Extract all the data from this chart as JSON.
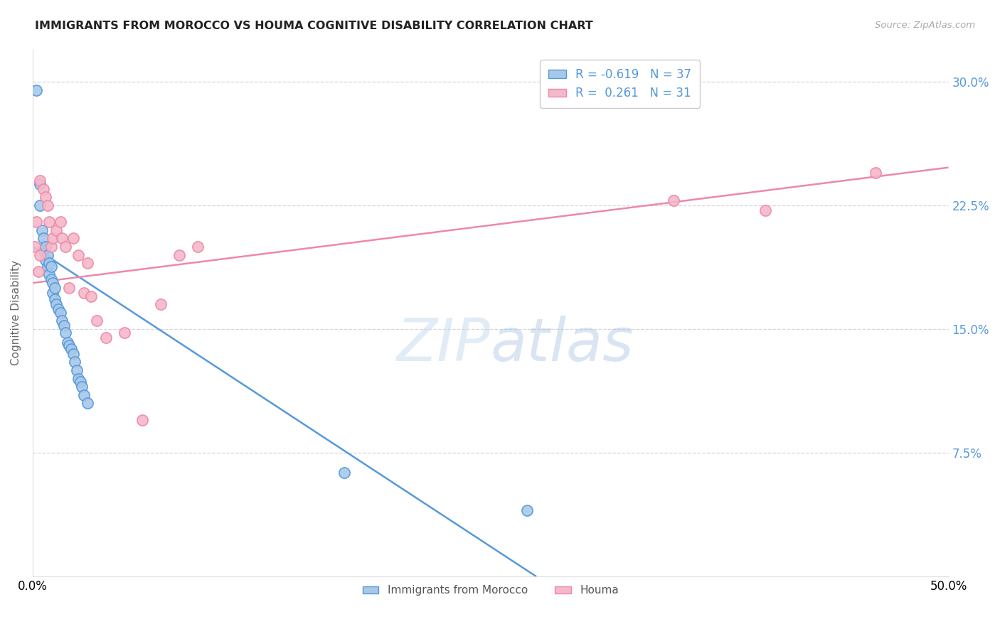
{
  "title": "IMMIGRANTS FROM MOROCCO VS HOUMA COGNITIVE DISABILITY CORRELATION CHART",
  "source": "Source: ZipAtlas.com",
  "ylabel": "Cognitive Disability",
  "ytick_labels": [
    "7.5%",
    "15.0%",
    "22.5%",
    "30.0%"
  ],
  "ytick_values": [
    0.075,
    0.15,
    0.225,
    0.3
  ],
  "xlim": [
    0.0,
    0.5
  ],
  "ylim": [
    0.0,
    0.32
  ],
  "legend_label1": "Immigrants from Morocco",
  "legend_label2": "Houma",
  "R1": "-0.619",
  "N1": "37",
  "R2": "0.261",
  "N2": "31",
  "color_blue": "#a8c8e8",
  "color_pink": "#f5b8c8",
  "line_blue": "#5599dd",
  "line_pink": "#ee88aa",
  "watermark_zip": "ZIP",
  "watermark_atlas": "atlas",
  "blue_scatter_x": [
    0.002,
    0.004,
    0.004,
    0.005,
    0.006,
    0.006,
    0.007,
    0.007,
    0.008,
    0.008,
    0.009,
    0.009,
    0.01,
    0.01,
    0.011,
    0.011,
    0.012,
    0.012,
    0.013,
    0.014,
    0.015,
    0.016,
    0.017,
    0.018,
    0.019,
    0.02,
    0.021,
    0.022,
    0.023,
    0.024,
    0.025,
    0.026,
    0.027,
    0.028,
    0.03,
    0.17,
    0.27
  ],
  "blue_scatter_y": [
    0.295,
    0.238,
    0.225,
    0.21,
    0.205,
    0.198,
    0.2,
    0.192,
    0.195,
    0.188,
    0.19,
    0.183,
    0.188,
    0.18,
    0.178,
    0.172,
    0.175,
    0.168,
    0.165,
    0.162,
    0.16,
    0.155,
    0.152,
    0.148,
    0.142,
    0.14,
    0.138,
    0.135,
    0.13,
    0.125,
    0.12,
    0.118,
    0.115,
    0.11,
    0.105,
    0.063,
    0.04
  ],
  "pink_scatter_x": [
    0.001,
    0.002,
    0.003,
    0.004,
    0.004,
    0.006,
    0.007,
    0.008,
    0.009,
    0.01,
    0.011,
    0.013,
    0.015,
    0.016,
    0.018,
    0.02,
    0.022,
    0.025,
    0.028,
    0.03,
    0.032,
    0.035,
    0.04,
    0.05,
    0.06,
    0.07,
    0.08,
    0.09,
    0.35,
    0.4,
    0.46
  ],
  "pink_scatter_y": [
    0.2,
    0.215,
    0.185,
    0.195,
    0.24,
    0.235,
    0.23,
    0.225,
    0.215,
    0.2,
    0.205,
    0.21,
    0.215,
    0.205,
    0.2,
    0.175,
    0.205,
    0.195,
    0.172,
    0.19,
    0.17,
    0.155,
    0.145,
    0.148,
    0.095,
    0.165,
    0.195,
    0.2,
    0.228,
    0.222,
    0.245
  ],
  "blue_line_x": [
    0.0,
    0.275
  ],
  "blue_line_y": [
    0.2,
    0.0
  ],
  "pink_line_x": [
    0.0,
    0.5
  ],
  "pink_line_y": [
    0.178,
    0.248
  ]
}
